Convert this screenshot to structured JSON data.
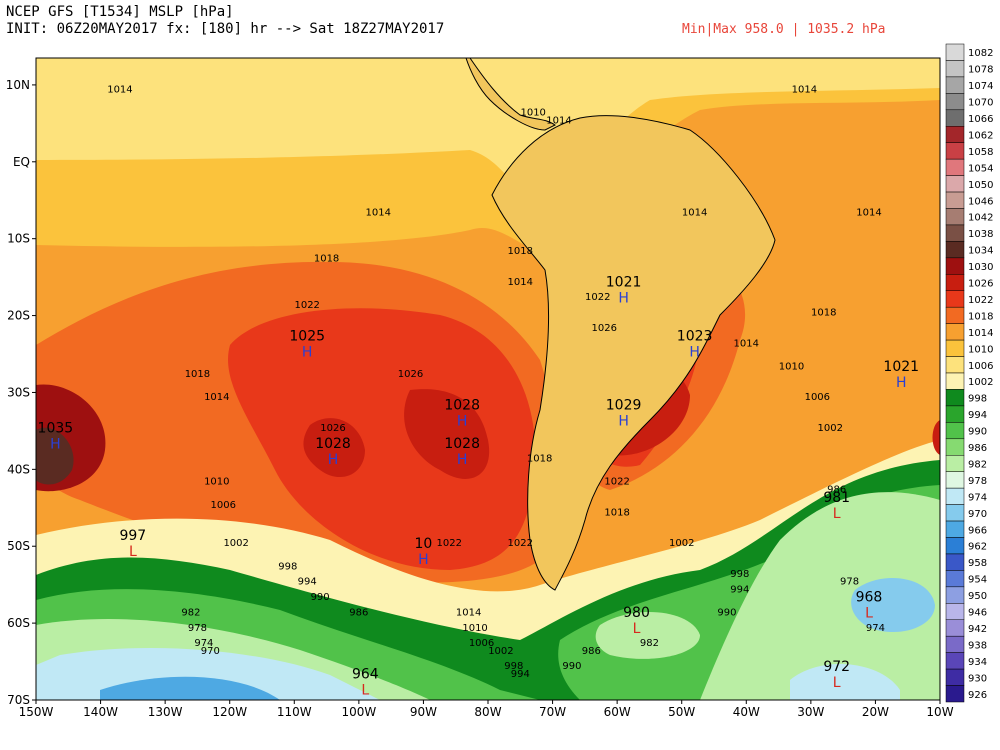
{
  "header": {
    "line1": "NCEP GFS [T1534] MSLP [hPa]",
    "line2": "INIT: 06Z20MAY2017 fx: [180] hr --> Sat 18Z27MAY2017",
    "minmax": "Min|Max 958.0 | 1035.2 hPa"
  },
  "axes": {
    "lon_labels": [
      "150W",
      "140W",
      "130W",
      "120W",
      "110W",
      "100W",
      "90W",
      "80W",
      "70W",
      "60W",
      "50W",
      "40W",
      "30W",
      "20W",
      "10W"
    ],
    "lat_labels": [
      "10N",
      "EQ",
      "10S",
      "20S",
      "30S",
      "40S",
      "50S",
      "60S",
      "70S"
    ]
  },
  "colorbar": {
    "labels": [
      "1082",
      "1078",
      "1074",
      "1070",
      "1066",
      "1062",
      "1058",
      "1054",
      "1050",
      "1046",
      "1042",
      "1038",
      "1034",
      "1030",
      "1026",
      "1022",
      "1018",
      "1014",
      "1010",
      "1006",
      "1002",
      "998",
      "994",
      "990",
      "986",
      "982",
      "978",
      "974",
      "970",
      "966",
      "962",
      "958",
      "954",
      "950",
      "946",
      "942",
      "938",
      "934",
      "930",
      "926"
    ],
    "colors": [
      "#d9d9d9",
      "#c4c4c4",
      "#a6a6a6",
      "#8c8c8c",
      "#6e6e6e",
      "#a3262a",
      "#c94045",
      "#e0777c",
      "#dba8aa",
      "#c89c93",
      "#a67d72",
      "#7a5045",
      "#5a2b22",
      "#9e1010",
      "#c81e10",
      "#e8381a",
      "#f26a22",
      "#f7a030",
      "#fbc33c",
      "#fde27c",
      "#fdf3b3",
      "#0f8a1e",
      "#2aa52c",
      "#51c24a",
      "#86da71",
      "#baeea4",
      "#dff7e2",
      "#c0e8f5",
      "#85cbed",
      "#4ea9e3",
      "#2b7fd6",
      "#3a58c8",
      "#5a7ad8",
      "#8d9fe2",
      "#b9b6ea",
      "#9a8ed8",
      "#7a6ac8",
      "#5a46b8",
      "#3e2ca4",
      "#2a1a8e"
    ]
  },
  "highs": [
    {
      "text": "1035",
      "lon": -147,
      "lat": -36,
      "sym": "H"
    },
    {
      "text": "1025",
      "lon": -108,
      "lat": -24,
      "sym": "H"
    },
    {
      "text": "1028",
      "lon": -104,
      "lat": -38,
      "sym": "H"
    },
    {
      "text": "1028",
      "lon": -84,
      "lat": -33,
      "sym": "H"
    },
    {
      "text": "1028",
      "lon": -84,
      "lat": -38,
      "sym": "H"
    },
    {
      "text": "10",
      "lon": -90,
      "lat": -51,
      "sym": "H"
    },
    {
      "text": "1021",
      "lon": -59,
      "lat": -17,
      "sym": "H"
    },
    {
      "text": "1029",
      "lon": -59,
      "lat": -33,
      "sym": "H"
    },
    {
      "text": "1023",
      "lon": -48,
      "lat": -24,
      "sym": "H"
    },
    {
      "text": "1021",
      "lon": -16,
      "lat": -28,
      "sym": "H"
    }
  ],
  "lows": [
    {
      "text": "997",
      "lon": -135,
      "lat": -50,
      "sym": "L"
    },
    {
      "text": "981",
      "lon": -26,
      "lat": -45,
      "sym": "L"
    },
    {
      "text": "980",
      "lon": -57,
      "lat": -60,
      "sym": "L"
    },
    {
      "text": "968",
      "lon": -21,
      "lat": -58,
      "sym": "L"
    },
    {
      "text": "972",
      "lon": -26,
      "lat": -67,
      "sym": "L"
    },
    {
      "text": "964",
      "lon": -99,
      "lat": -68,
      "sym": "L"
    }
  ],
  "contour_labels": [
    {
      "text": "1014",
      "lon": -137,
      "lat": 9
    },
    {
      "text": "1014",
      "lon": -31,
      "lat": 9
    },
    {
      "text": "1010",
      "lon": -73,
      "lat": 6
    },
    {
      "text": "1014",
      "lon": -69,
      "lat": 5
    },
    {
      "text": "1014",
      "lon": -97,
      "lat": -7
    },
    {
      "text": "1014",
      "lon": -48,
      "lat": -7
    },
    {
      "text": "1014",
      "lon": -21,
      "lat": -7
    },
    {
      "text": "1018",
      "lon": -105,
      "lat": -13
    },
    {
      "text": "1018",
      "lon": -75,
      "lat": -12
    },
    {
      "text": "1014",
      "lon": -75,
      "lat": -16
    },
    {
      "text": "1022",
      "lon": -108,
      "lat": -19
    },
    {
      "text": "1022",
      "lon": -63,
      "lat": -18
    },
    {
      "text": "1026",
      "lon": -62,
      "lat": -22
    },
    {
      "text": "1018",
      "lon": -28,
      "lat": -20
    },
    {
      "text": "1014",
      "lon": -40,
      "lat": -24
    },
    {
      "text": "1018",
      "lon": -125,
      "lat": -28
    },
    {
      "text": "1014",
      "lon": -122,
      "lat": -31
    },
    {
      "text": "1026",
      "lon": -92,
      "lat": -28
    },
    {
      "text": "1026",
      "lon": -104,
      "lat": -35
    },
    {
      "text": "1010",
      "lon": -33,
      "lat": -27
    },
    {
      "text": "1006",
      "lon": -29,
      "lat": -31
    },
    {
      "text": "1002",
      "lon": -27,
      "lat": -35
    },
    {
      "text": "1018",
      "lon": -72,
      "lat": -39
    },
    {
      "text": "1022",
      "lon": -60,
      "lat": -42
    },
    {
      "text": "1018",
      "lon": -60,
      "lat": -46
    },
    {
      "text": "1010",
      "lon": -122,
      "lat": -42
    },
    {
      "text": "1006",
      "lon": -121,
      "lat": -45
    },
    {
      "text": "1022",
      "lon": -86,
      "lat": -50
    },
    {
      "text": "1022",
      "lon": -75,
      "lat": -50
    },
    {
      "text": "1002",
      "lon": -119,
      "lat": -50
    },
    {
      "text": "1002",
      "lon": -50,
      "lat": -50
    },
    {
      "text": "998",
      "lon": -111,
      "lat": -53
    },
    {
      "text": "994",
      "lon": -108,
      "lat": -55
    },
    {
      "text": "990",
      "lon": -106,
      "lat": -57
    },
    {
      "text": "986",
      "lon": -100,
      "lat": -59
    },
    {
      "text": "998",
      "lon": -41,
      "lat": -54
    },
    {
      "text": "994",
      "lon": -41,
      "lat": -56
    },
    {
      "text": "990",
      "lon": -43,
      "lat": -59
    },
    {
      "text": "986",
      "lon": -26,
      "lat": -43
    },
    {
      "text": "978",
      "lon": -24,
      "lat": -55
    },
    {
      "text": "974",
      "lon": -20,
      "lat": -61
    },
    {
      "text": "982",
      "lon": -126,
      "lat": -59
    },
    {
      "text": "978",
      "lon": -125,
      "lat": -61
    },
    {
      "text": "974",
      "lon": -124,
      "lat": -63
    },
    {
      "text": "970",
      "lon": -123,
      "lat": -64
    },
    {
      "text": "1014",
      "lon": -83,
      "lat": -59
    },
    {
      "text": "1010",
      "lon": -82,
      "lat": -61
    },
    {
      "text": "1006",
      "lon": -81,
      "lat": -63
    },
    {
      "text": "1002",
      "lon": -78,
      "lat": -64
    },
    {
      "text": "998",
      "lon": -76,
      "lat": -66
    },
    {
      "text": "994",
      "lon": -75,
      "lat": -67
    },
    {
      "text": "982",
      "lon": -55,
      "lat": -63
    },
    {
      "text": "986",
      "lon": -64,
      "lat": -64
    },
    {
      "text": "990",
      "lon": -67,
      "lat": -66
    }
  ]
}
